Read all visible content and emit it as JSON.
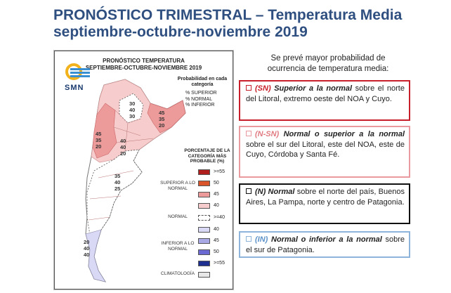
{
  "title": {
    "line1": "PRONÓSTICO TRIMESTRAL – Temperatura Media",
    "line2": "septiembre-octubre-noviembre 2019"
  },
  "map": {
    "title_line1": "PRONÓSTICO TEMPERATURA",
    "title_line2": "SEPTIEMBRE-OCTUBRE-NOVIEMBRE 2019",
    "logo_text": "SMN",
    "prob_title": "Probabilidad en cada categoría",
    "prob_items": [
      "% SUPERIOR",
      "% NORMAL",
      "% INFERIOR"
    ],
    "legend_title": "PORCENTAJE DE LA CATEGORÍA MÁS PROBABLE (%)",
    "legend_groups": {
      "superior": "SUPERIOR A LO NORMAL",
      "normal": "NORMAL",
      "inferior": "INFERIOR A LO NORMAL",
      "climatologia": "CLIMATOLOGÍA"
    },
    "legend_items": [
      {
        "label": ">=55",
        "color": "#b01e1e",
        "dashed": false
      },
      {
        "label": "50",
        "color": "#d9542a",
        "dashed": false
      },
      {
        "label": "45",
        "color": "#ec9a9a",
        "dashed": false
      },
      {
        "label": "40",
        "color": "#f6cccc",
        "dashed": false
      },
      {
        "label": ">=40",
        "color": "#ffffff",
        "dashed": true
      },
      {
        "label": "40",
        "color": "#d9d9f6",
        "dashed": false
      },
      {
        "label": "45",
        "color": "#a9a9e6",
        "dashed": false
      },
      {
        "label": "50",
        "color": "#6a6ad2",
        "dashed": false
      },
      {
        "label": ">=55",
        "color": "#1f2f8f",
        "dashed": false
      },
      {
        "label": "",
        "color": "#e8e8e8",
        "dashed": false
      }
    ],
    "region_numbers": {
      "north_center": [
        "30",
        "40",
        "30"
      ],
      "northeast": [
        "45",
        "35",
        "20"
      ],
      "northwest": [
        "45",
        "35",
        "20"
      ],
      "cuyo": [
        "40",
        "40",
        "20"
      ],
      "pampa": [
        "35",
        "40",
        "25"
      ],
      "patagonia_south": [
        "20",
        "40",
        "40"
      ]
    }
  },
  "panel": {
    "intro": "Se prevé mayor probabilidad de ocurrencia de temperatura media:",
    "boxes": [
      {
        "tag": "(SN)",
        "lead": "Superior a la normal",
        "text": " sobre el norte del Litoral, extremo oeste del NOA y Cuyo.",
        "color": "#c8202a"
      },
      {
        "tag": "(N-SN)",
        "lead": "Normal o superior a la normal",
        "text": " sobre el sur del Litoral, este del NOA, este de Cuyo, Córdoba y Santa Fé.",
        "color": "#e99a9e"
      },
      {
        "tag": "(N)",
        "lead": "Normal",
        "text": " sobre el norte del país, Buenos Aires, La Pampa, norte y centro de Patagonia.",
        "color": "#111111"
      },
      {
        "tag": "(IN)",
        "lead": "Normal o inferior a la normal",
        "text": " sobre el sur de Patagonia.",
        "color": "#8fb4dc"
      }
    ]
  }
}
